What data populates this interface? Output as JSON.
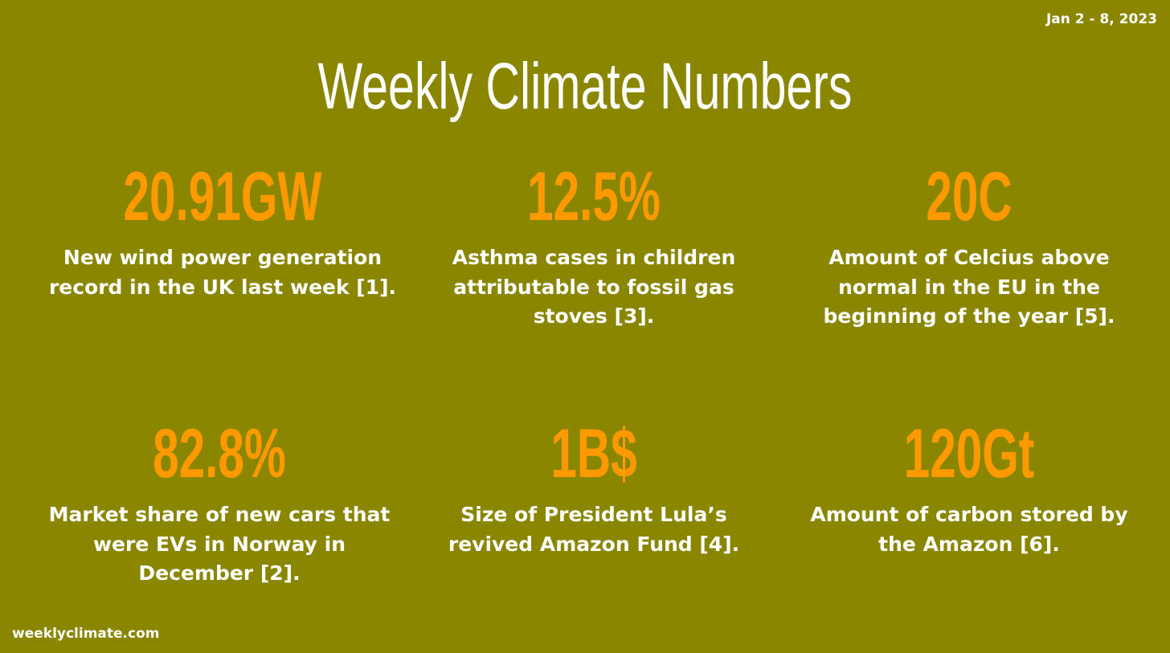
{
  "date_range": "Jan 2 - 8, 2023",
  "title": "Weekly Climate Numbers",
  "colors": {
    "background": "#8a8600",
    "accent": "#ff9900",
    "text": "#ffffff"
  },
  "stats": [
    {
      "value": "20.91GW",
      "description": "New wind power generation record in the UK last week [1]."
    },
    {
      "value": "12.5%",
      "description": "Asthma cases in children attributable to fossil gas stoves [3]."
    },
    {
      "value": "20C",
      "description": "Amount of Celcius above normal in the EU in the beginning of the year [5]."
    },
    {
      "value": "82.8%",
      "description": "Market share of new cars that were EVs in Norway in December [2]."
    },
    {
      "value": "1B$",
      "description": "Size of President Lula’s revived Amazon Fund [4]."
    },
    {
      "value": "120Gt",
      "description": "Amount of carbon stored by the Amazon [6]."
    }
  ],
  "footer": "weeklyclimate.com"
}
